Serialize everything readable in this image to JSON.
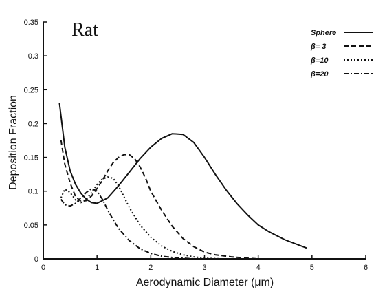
{
  "chart_data": {
    "type": "line",
    "title": "Rat",
    "xlabel": "Aerodynamic Diameter (μm)",
    "ylabel": "Deposition Fraction",
    "xlim": [
      0,
      6
    ],
    "ylim": [
      0,
      0.35
    ],
    "x_ticks": [
      "0",
      "1",
      "2",
      "3",
      "4",
      "5",
      "6"
    ],
    "y_ticks": [
      "0",
      "0.05",
      "0.1",
      "0.15",
      "0.2",
      "0.25",
      "0.3",
      "0.35"
    ],
    "legend_position": "top-right",
    "series": [
      {
        "name": "Sphere",
        "dash": "solid",
        "x": [
          0.3,
          0.4,
          0.5,
          0.6,
          0.7,
          0.8,
          0.9,
          1.0,
          1.2,
          1.4,
          1.6,
          1.8,
          2.0,
          2.2,
          2.4,
          2.6,
          2.8,
          3.0,
          3.2,
          3.4,
          3.6,
          3.8,
          4.0,
          4.2,
          4.5,
          4.9
        ],
        "y": [
          0.23,
          0.165,
          0.13,
          0.11,
          0.097,
          0.088,
          0.083,
          0.082,
          0.09,
          0.108,
          0.128,
          0.148,
          0.165,
          0.178,
          0.185,
          0.184,
          0.172,
          0.15,
          0.125,
          0.102,
          0.082,
          0.065,
          0.05,
          0.04,
          0.028,
          0.016
        ]
      },
      {
        "name": "β= 3",
        "dash": "dashed",
        "x": [
          0.33,
          0.4,
          0.5,
          0.6,
          0.7,
          0.8,
          0.9,
          1.0,
          1.1,
          1.2,
          1.3,
          1.4,
          1.5,
          1.6,
          1.7,
          1.8,
          1.9,
          2.0,
          2.2,
          2.4,
          2.6,
          2.8,
          3.0,
          3.2,
          3.5,
          3.8,
          4.0
        ],
        "y": [
          0.175,
          0.14,
          0.112,
          0.092,
          0.085,
          0.086,
          0.093,
          0.104,
          0.116,
          0.13,
          0.142,
          0.15,
          0.154,
          0.154,
          0.148,
          0.136,
          0.12,
          0.1,
          0.072,
          0.048,
          0.03,
          0.018,
          0.01,
          0.006,
          0.003,
          0.001,
          0.0
        ]
      },
      {
        "name": "β=10",
        "dash": "dotted",
        "x": [
          0.33,
          0.4,
          0.5,
          0.6,
          0.7,
          0.8,
          0.9,
          1.0,
          1.1,
          1.2,
          1.3,
          1.4,
          1.5,
          1.6,
          1.8,
          2.0,
          2.2,
          2.4,
          2.6,
          2.8,
          3.0,
          3.3
        ],
        "y": [
          0.09,
          0.103,
          0.098,
          0.087,
          0.083,
          0.088,
          0.098,
          0.11,
          0.118,
          0.121,
          0.119,
          0.108,
          0.092,
          0.076,
          0.05,
          0.032,
          0.019,
          0.011,
          0.006,
          0.003,
          0.001,
          0.0
        ]
      },
      {
        "name": "β=20",
        "dash": "dashdot",
        "x": [
          0.33,
          0.4,
          0.5,
          0.6,
          0.7,
          0.8,
          0.9,
          1.0,
          1.1,
          1.2,
          1.3,
          1.4,
          1.6,
          1.8,
          2.0,
          2.2,
          2.4,
          2.6,
          2.8
        ],
        "y": [
          0.088,
          0.08,
          0.078,
          0.082,
          0.09,
          0.098,
          0.104,
          0.1,
          0.088,
          0.072,
          0.058,
          0.045,
          0.027,
          0.015,
          0.008,
          0.004,
          0.002,
          0.001,
          0.0
        ]
      }
    ]
  }
}
